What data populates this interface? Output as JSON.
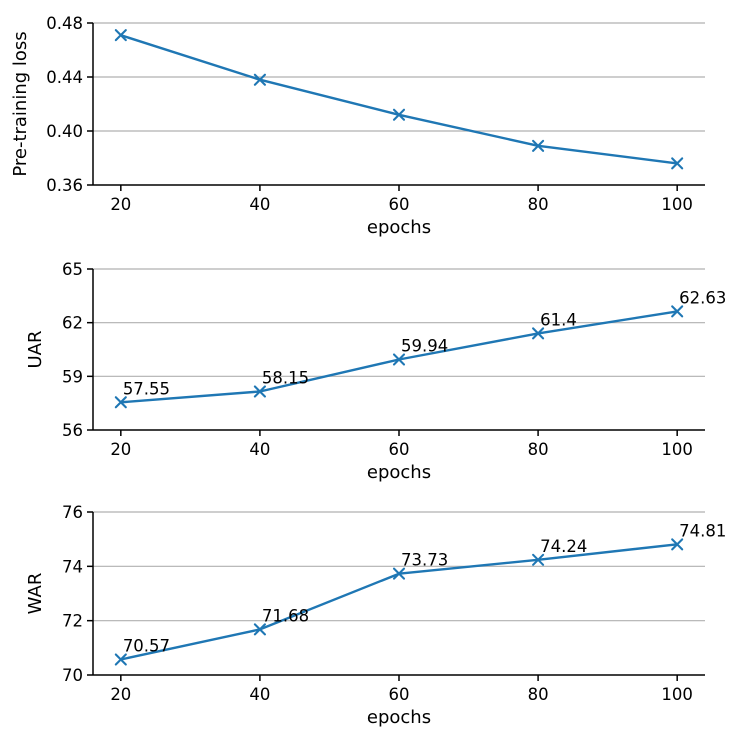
{
  "figure": {
    "background": "#ffffff",
    "series_color": "#1f77b4",
    "grid_color": "#b0b0b0",
    "axis_color": "#000000",
    "marker": "x"
  },
  "chart_data": [
    {
      "type": "line",
      "name": "pre-training-loss",
      "title": "",
      "xlabel": "epochs",
      "ylabel": "Pre-training loss",
      "grid": "horizontal",
      "legend": null,
      "x": [
        20,
        40,
        60,
        80,
        100
      ],
      "values": [
        0.471,
        0.438,
        0.412,
        0.389,
        0.376
      ],
      "point_labels": null,
      "xticks": [
        20,
        40,
        60,
        80,
        100
      ],
      "yticks": [
        0.36,
        0.4,
        0.44,
        0.48
      ],
      "ytick_labels": [
        "0.36",
        "0.40",
        "0.44",
        "0.48"
      ],
      "xlim": [
        16,
        104
      ],
      "ylim": [
        0.36,
        0.48
      ]
    },
    {
      "type": "line",
      "name": "uar",
      "title": "",
      "xlabel": "epochs",
      "ylabel": "UAR",
      "grid": "horizontal",
      "legend": null,
      "x": [
        20,
        40,
        60,
        80,
        100
      ],
      "values": [
        57.55,
        58.15,
        59.94,
        61.4,
        62.63
      ],
      "point_labels": [
        "57.55",
        "58.15",
        "59.94",
        "61.4",
        "62.63"
      ],
      "xticks": [
        20,
        40,
        60,
        80,
        100
      ],
      "yticks": [
        56,
        59,
        62,
        65
      ],
      "ytick_labels": [
        "56",
        "59",
        "62",
        "65"
      ],
      "xlim": [
        16,
        104
      ],
      "ylim": [
        56,
        65
      ]
    },
    {
      "type": "line",
      "name": "war",
      "title": "",
      "xlabel": "epochs",
      "ylabel": "WAR",
      "grid": "horizontal",
      "legend": null,
      "x": [
        20,
        40,
        60,
        80,
        100
      ],
      "values": [
        70.57,
        71.68,
        73.73,
        74.24,
        74.81
      ],
      "point_labels": [
        "70.57",
        "71.68",
        "73.73",
        "74.24",
        "74.81"
      ],
      "xticks": [
        20,
        40,
        60,
        80,
        100
      ],
      "yticks": [
        70,
        72,
        74,
        76
      ],
      "ytick_labels": [
        "70",
        "72",
        "74",
        "76"
      ],
      "xlim": [
        16,
        104
      ],
      "ylim": [
        70,
        76
      ]
    }
  ]
}
